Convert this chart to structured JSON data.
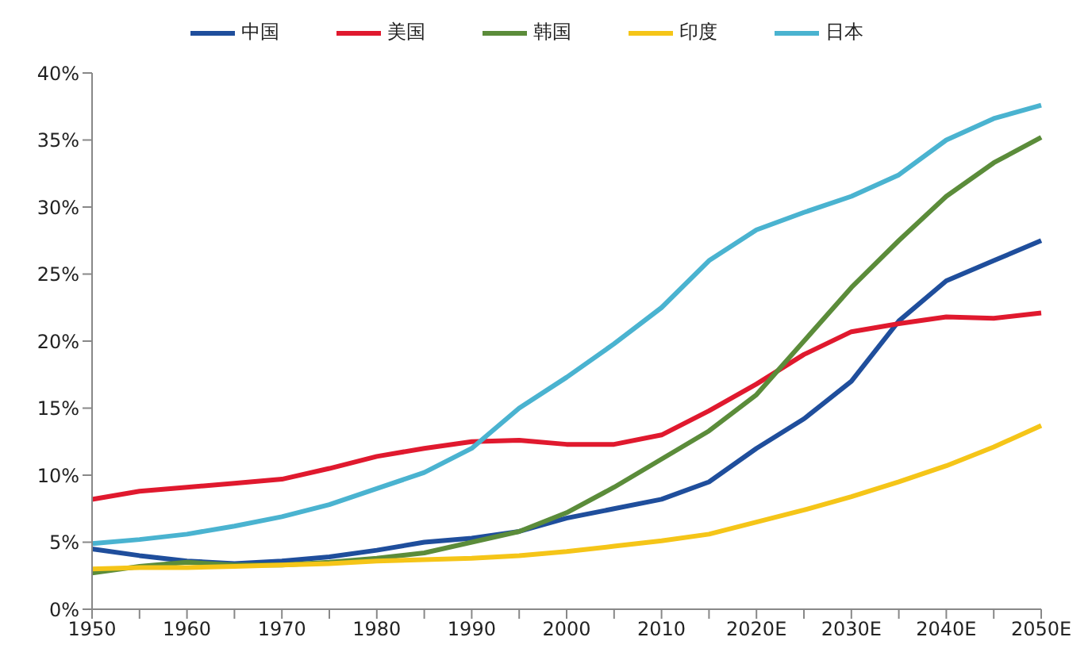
{
  "chart_data": {
    "type": "line",
    "categories": [
      "1950",
      null,
      "1960",
      null,
      "1970",
      null,
      "1980",
      null,
      "1990",
      null,
      "2000",
      null,
      "2010",
      null,
      "2020E",
      null,
      "2030E",
      null,
      "2040E",
      null,
      "2050E"
    ],
    "series": [
      {
        "name": "中国",
        "color": "#1f4e9c",
        "values": [
          4.5,
          4.0,
          3.6,
          3.4,
          3.6,
          3.9,
          4.4,
          5.0,
          5.3,
          5.8,
          6.8,
          7.5,
          8.2,
          9.5,
          12.0,
          14.2,
          17.0,
          21.5,
          24.5,
          26.0,
          27.5
        ]
      },
      {
        "name": "美国",
        "color": "#e0192e",
        "values": [
          8.2,
          8.8,
          9.1,
          9.4,
          9.7,
          10.5,
          11.4,
          12.0,
          12.5,
          12.6,
          12.3,
          12.3,
          13.0,
          14.8,
          16.8,
          19.0,
          20.7,
          21.3,
          21.8,
          21.7,
          22.1
        ]
      },
      {
        "name": "韩国",
        "color": "#5b8c3a",
        "values": [
          2.7,
          3.2,
          3.5,
          3.3,
          3.3,
          3.5,
          3.8,
          4.2,
          5.0,
          5.8,
          7.2,
          9.1,
          11.2,
          13.3,
          16.0,
          20.0,
          24.0,
          27.5,
          30.8,
          33.3,
          35.2
        ]
      },
      {
        "name": "印度",
        "color": "#f5c518",
        "values": [
          3.0,
          3.1,
          3.1,
          3.2,
          3.3,
          3.4,
          3.6,
          3.7,
          3.8,
          4.0,
          4.3,
          4.7,
          5.1,
          5.6,
          6.5,
          7.4,
          8.4,
          9.5,
          10.7,
          12.1,
          13.7
        ]
      },
      {
        "name": "日本",
        "color": "#4ab3d0",
        "values": [
          4.9,
          5.2,
          5.6,
          6.2,
          6.9,
          7.8,
          9.0,
          10.2,
          12.0,
          15.0,
          17.3,
          19.8,
          22.5,
          26.0,
          28.3,
          29.6,
          30.8,
          32.4,
          35.0,
          36.6,
          37.6
        ]
      }
    ],
    "ylim": [
      0,
      40
    ],
    "yticks": [
      {
        "value": 0,
        "label": "0%"
      },
      {
        "value": 5,
        "label": "5%"
      },
      {
        "value": 10,
        "label": "10%"
      },
      {
        "value": 15,
        "label": "15%"
      },
      {
        "value": 20,
        "label": "20%"
      },
      {
        "value": 25,
        "label": "25%"
      },
      {
        "value": 30,
        "label": "30%"
      },
      {
        "value": 35,
        "label": "35%"
      },
      {
        "value": 40,
        "label": "40%"
      }
    ],
    "grid": false,
    "legend": "top",
    "marker": "none",
    "line_style": "solid"
  }
}
